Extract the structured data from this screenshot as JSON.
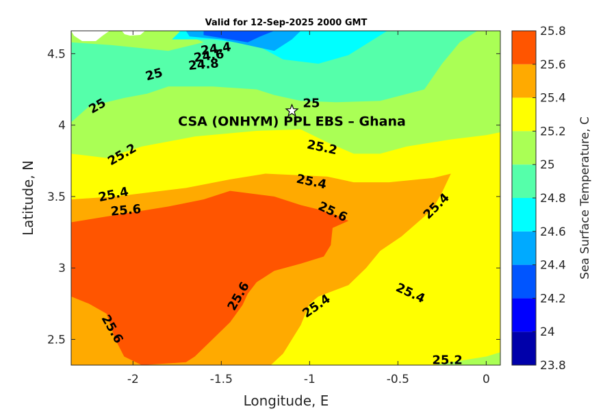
{
  "chart_data": {
    "type": "contour",
    "title": "Valid for 12-Sep-2025 2000 GMT",
    "xlabel": "Longitude, E",
    "ylabel": "Latitude, N",
    "xlim": [
      -2.35,
      0.08
    ],
    "ylim": [
      2.32,
      4.66
    ],
    "x_ticks": [
      -2,
      -1.5,
      -1,
      -0.5,
      0
    ],
    "x_tick_labels": [
      "-2",
      "-1.5",
      "-1",
      "-0.5",
      "0"
    ],
    "y_ticks": [
      2.5,
      3,
      3.5,
      4,
      4.5
    ],
    "y_tick_labels": [
      "2.5",
      "3",
      "3.5",
      "4",
      "4.5"
    ],
    "colorbar": {
      "label": "Sea Surface Temperature, C",
      "levels": [
        23.8,
        24.0,
        24.2,
        24.4,
        24.6,
        24.8,
        25.0,
        25.2,
        25.4,
        25.6,
        25.8
      ],
      "level_labels": [
        "23.8",
        "24",
        "24.2",
        "24.4",
        "24.6",
        "24.8",
        "25",
        "25.2",
        "25.4",
        "25.6",
        "25.8"
      ],
      "colors": [
        "#0000aa",
        "#0000ff",
        "#0055ff",
        "#00aaff",
        "#00ffff",
        "#55ffaa",
        "#aaff55",
        "#ffff00",
        "#ffaa00",
        "#ff5500"
      ]
    },
    "contour_labels": [
      {
        "text": "24.4",
        "lon": -1.53,
        "lat": 4.53,
        "angle": -8
      },
      {
        "text": "24.6",
        "lon": -1.57,
        "lat": 4.48,
        "angle": -8
      },
      {
        "text": "24.8",
        "lon": -1.6,
        "lat": 4.42,
        "angle": -5
      },
      {
        "text": "25",
        "lon": -1.88,
        "lat": 4.35,
        "angle": -15
      },
      {
        "text": "25",
        "lon": -2.2,
        "lat": 4.13,
        "angle": -30
      },
      {
        "text": "25",
        "lon": -0.99,
        "lat": 4.15,
        "angle": 0
      },
      {
        "text": "25.2",
        "lon": -2.06,
        "lat": 3.79,
        "angle": -30
      },
      {
        "text": "25.2",
        "lon": -0.93,
        "lat": 3.84,
        "angle": 12
      },
      {
        "text": "25.4",
        "lon": -2.11,
        "lat": 3.51,
        "angle": -12
      },
      {
        "text": "25.4",
        "lon": -0.99,
        "lat": 3.6,
        "angle": 12
      },
      {
        "text": "25.4",
        "lon": -0.28,
        "lat": 3.43,
        "angle": -45
      },
      {
        "text": "25.4",
        "lon": -0.43,
        "lat": 2.82,
        "angle": 25
      },
      {
        "text": "25.4",
        "lon": -0.96,
        "lat": 2.73,
        "angle": -35
      },
      {
        "text": "25.6",
        "lon": -2.04,
        "lat": 3.4,
        "angle": -5
      },
      {
        "text": "25.6",
        "lon": -0.87,
        "lat": 3.39,
        "angle": 25
      },
      {
        "text": "25.6",
        "lon": -1.4,
        "lat": 2.8,
        "angle": -60
      },
      {
        "text": "25.6",
        "lon": -2.12,
        "lat": 2.57,
        "angle": 60
      },
      {
        "text": "25.2",
        "lon": -0.22,
        "lat": 2.35,
        "angle": 0
      }
    ],
    "marker": {
      "symbol": "star",
      "lon": -1.1,
      "lat": 4.1
    },
    "annotation": {
      "text": "CSA (ONHYM) PPL EBS  – Ghana",
      "lon": -1.1,
      "lat": 4.03
    },
    "regions": [
      {
        "level_index": 6,
        "points": [
          [
            -2.35,
            4.66
          ],
          [
            0.08,
            4.66
          ],
          [
            0.08,
            2.32
          ],
          [
            -2.35,
            2.32
          ]
        ]
      },
      {
        "level_index": 5,
        "points": [
          [
            -2.35,
            4.02
          ],
          [
            -2.25,
            4.13
          ],
          [
            -2.05,
            4.19
          ],
          [
            -1.92,
            4.22
          ],
          [
            -1.8,
            4.27
          ],
          [
            -1.55,
            4.27
          ],
          [
            -1.3,
            4.25
          ],
          [
            -1.2,
            4.21
          ],
          [
            -1.05,
            4.17
          ],
          [
            -0.85,
            4.16
          ],
          [
            -0.6,
            4.17
          ],
          [
            -0.35,
            4.25
          ],
          [
            -0.25,
            4.43
          ],
          [
            -0.15,
            4.58
          ],
          [
            -0.05,
            4.66
          ],
          [
            -1.75,
            4.66
          ],
          [
            -1.6,
            4.58
          ],
          [
            -1.8,
            4.52
          ],
          [
            -2.12,
            4.56
          ],
          [
            -2.35,
            4.58
          ]
        ]
      },
      {
        "level_index": 4,
        "points": [
          [
            -1.73,
            4.66
          ],
          [
            -1.78,
            4.6
          ],
          [
            -1.55,
            4.6
          ],
          [
            -1.3,
            4.56
          ],
          [
            -1.15,
            4.46
          ],
          [
            -0.95,
            4.43
          ],
          [
            -0.78,
            4.49
          ],
          [
            -0.65,
            4.59
          ],
          [
            -0.56,
            4.66
          ]
        ]
      },
      {
        "level_index": 3,
        "points": [
          [
            -1.7,
            4.66
          ],
          [
            -1.68,
            4.62
          ],
          [
            -1.5,
            4.6
          ],
          [
            -1.35,
            4.56
          ],
          [
            -1.2,
            4.52
          ],
          [
            -1.1,
            4.6
          ],
          [
            -1.05,
            4.66
          ]
        ]
      },
      {
        "level_index": 2,
        "points": [
          [
            -1.6,
            4.66
          ],
          [
            -1.6,
            4.63
          ],
          [
            -1.45,
            4.6
          ],
          [
            -1.35,
            4.58
          ],
          [
            -1.28,
            4.62
          ],
          [
            -1.2,
            4.66
          ]
        ]
      },
      {
        "level_index": 7,
        "points": [
          [
            -2.35,
            3.8
          ],
          [
            -2.15,
            3.77
          ],
          [
            -1.95,
            3.85
          ],
          [
            -1.65,
            3.92
          ],
          [
            -1.3,
            3.96
          ],
          [
            -1.05,
            3.97
          ],
          [
            -0.9,
            3.88
          ],
          [
            -0.75,
            3.8
          ],
          [
            -0.6,
            3.8
          ],
          [
            -0.45,
            3.85
          ],
          [
            -0.2,
            3.9
          ],
          [
            0.0,
            3.93
          ],
          [
            0.08,
            3.95
          ],
          [
            0.08,
            2.41
          ],
          [
            0.0,
            2.38
          ],
          [
            -0.15,
            2.35
          ],
          [
            -0.3,
            2.32
          ],
          [
            -2.35,
            2.32
          ]
        ]
      },
      {
        "level_index": 8,
        "points": [
          [
            -2.35,
            3.48
          ],
          [
            -2.1,
            3.5
          ],
          [
            -1.7,
            3.56
          ],
          [
            -1.45,
            3.62
          ],
          [
            -1.25,
            3.66
          ],
          [
            -0.9,
            3.64
          ],
          [
            -0.75,
            3.6
          ],
          [
            -0.55,
            3.6
          ],
          [
            -0.3,
            3.63
          ],
          [
            -0.2,
            3.66
          ],
          [
            -0.25,
            3.53
          ],
          [
            -0.3,
            3.42
          ],
          [
            -0.35,
            3.36
          ],
          [
            -0.48,
            3.22
          ],
          [
            -0.6,
            3.12
          ],
          [
            -0.68,
            3.0
          ],
          [
            -0.78,
            2.88
          ],
          [
            -0.95,
            2.8
          ],
          [
            -1.0,
            2.75
          ],
          [
            -1.05,
            2.6
          ],
          [
            -1.15,
            2.4
          ],
          [
            -1.22,
            2.32
          ],
          [
            -2.35,
            2.32
          ]
        ]
      },
      {
        "level_index": 9,
        "points": [
          [
            -2.35,
            3.32
          ],
          [
            -2.05,
            3.38
          ],
          [
            -1.8,
            3.43
          ],
          [
            -1.6,
            3.48
          ],
          [
            -1.45,
            3.54
          ],
          [
            -1.2,
            3.5
          ],
          [
            -1.05,
            3.44
          ],
          [
            -0.95,
            3.41
          ],
          [
            -0.85,
            3.37
          ],
          [
            -0.78,
            3.33
          ],
          [
            -0.87,
            3.28
          ],
          [
            -0.88,
            3.16
          ],
          [
            -0.92,
            3.08
          ],
          [
            -1.05,
            3.03
          ],
          [
            -1.2,
            2.98
          ],
          [
            -1.3,
            2.9
          ],
          [
            -1.35,
            2.82
          ],
          [
            -1.38,
            2.74
          ],
          [
            -1.45,
            2.62
          ],
          [
            -1.55,
            2.5
          ],
          [
            -1.65,
            2.38
          ],
          [
            -1.7,
            2.34
          ],
          [
            -1.95,
            2.32
          ],
          [
            -2.05,
            2.38
          ],
          [
            -2.1,
            2.5
          ],
          [
            -2.15,
            2.68
          ],
          [
            -2.25,
            2.75
          ],
          [
            -2.35,
            2.8
          ]
        ]
      }
    ]
  }
}
